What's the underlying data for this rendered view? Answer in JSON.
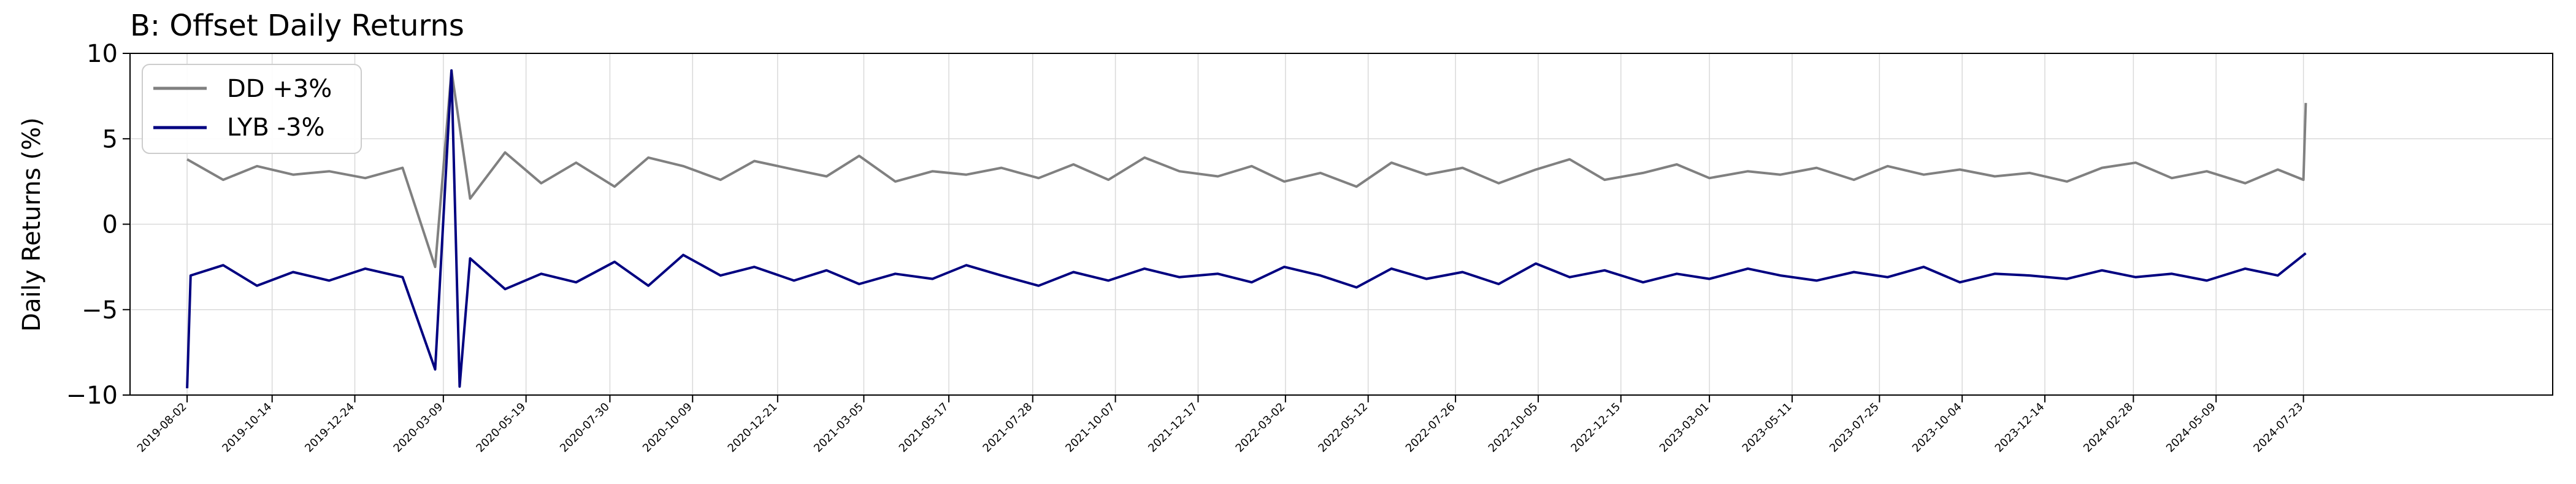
{
  "chart_data": {
    "type": "line",
    "title": "B: Offset Daily Returns",
    "xlabel": "",
    "ylabel": "Daily Returns (%)",
    "ylim": [
      -10,
      10
    ],
    "xlim": [
      "2019-06-14",
      "2025-02-22"
    ],
    "grid": true,
    "legend_position": "top-left",
    "yticks": [
      -10,
      -5,
      0,
      5,
      10
    ],
    "yticklabels": [
      "−10",
      "−5",
      "0",
      "5",
      "10"
    ],
    "xticks": [
      "2019-08-02",
      "2019-10-14",
      "2019-12-24",
      "2020-03-09",
      "2020-05-19",
      "2020-07-30",
      "2020-10-09",
      "2020-12-21",
      "2021-03-05",
      "2021-05-17",
      "2021-07-28",
      "2021-10-07",
      "2021-12-17",
      "2022-03-02",
      "2022-05-12",
      "2022-07-26",
      "2022-10-05",
      "2022-12-15",
      "2023-03-01",
      "2023-05-11",
      "2023-07-25",
      "2023-10-04",
      "2023-12-14",
      "2024-02-28",
      "2024-05-09",
      "2024-07-23"
    ],
    "series": [
      {
        "name": "DD +3%",
        "color": "#808080",
        "x": [
          "2019-08-02",
          "2019-09-02",
          "2019-10-01",
          "2019-11-01",
          "2019-12-02",
          "2020-01-02",
          "2020-02-03",
          "2020-03-02",
          "2020-03-16",
          "2020-04-01",
          "2020-05-01",
          "2020-06-01",
          "2020-07-01",
          "2020-08-03",
          "2020-09-01",
          "2020-10-01",
          "2020-11-02",
          "2020-12-01",
          "2021-01-04",
          "2021-02-01",
          "2021-03-01",
          "2021-04-01",
          "2021-05-03",
          "2021-06-01",
          "2021-07-01",
          "2021-08-02",
          "2021-09-01",
          "2021-10-01",
          "2021-11-01",
          "2021-12-01",
          "2022-01-03",
          "2022-02-01",
          "2022-03-01",
          "2022-04-01",
          "2022-05-02",
          "2022-06-01",
          "2022-07-01",
          "2022-08-01",
          "2022-09-01",
          "2022-10-03",
          "2022-11-01",
          "2022-12-01",
          "2023-01-03",
          "2023-02-01",
          "2023-03-01",
          "2023-04-03",
          "2023-05-01",
          "2023-06-01",
          "2023-07-03",
          "2023-08-01",
          "2023-09-01",
          "2023-10-02",
          "2023-11-01",
          "2023-12-01",
          "2024-01-02",
          "2024-02-01",
          "2024-03-01",
          "2024-04-01",
          "2024-05-01",
          "2024-06-03",
          "2024-07-01",
          "2024-07-23",
          "2024-07-25"
        ],
        "values": [
          3.8,
          2.6,
          3.4,
          2.9,
          3.1,
          2.7,
          3.3,
          -2.5,
          9.0,
          1.5,
          4.2,
          2.4,
          3.6,
          2.2,
          3.9,
          3.4,
          2.6,
          3.7,
          3.2,
          2.8,
          4.0,
          2.5,
          3.1,
          2.9,
          3.3,
          2.7,
          3.5,
          2.6,
          3.9,
          3.1,
          2.8,
          3.4,
          2.5,
          3.0,
          2.2,
          3.6,
          2.9,
          3.3,
          2.4,
          3.2,
          3.8,
          2.6,
          3.0,
          3.5,
          2.7,
          3.1,
          2.9,
          3.3,
          2.6,
          3.4,
          2.9,
          3.2,
          2.8,
          3.0,
          2.5,
          3.3,
          3.6,
          2.7,
          3.1,
          2.4,
          3.2,
          2.6,
          7.1
        ]
      },
      {
        "name": "LYB -3%",
        "color": "#000080",
        "x": [
          "2019-08-02",
          "2019-08-05",
          "2019-09-02",
          "2019-10-01",
          "2019-11-01",
          "2019-12-02",
          "2020-01-02",
          "2020-02-03",
          "2020-03-02",
          "2020-03-16",
          "2020-03-23",
          "2020-04-01",
          "2020-05-01",
          "2020-06-01",
          "2020-07-01",
          "2020-08-03",
          "2020-09-01",
          "2020-10-01",
          "2020-11-02",
          "2020-12-01",
          "2021-01-04",
          "2021-02-01",
          "2021-03-01",
          "2021-04-01",
          "2021-05-03",
          "2021-06-01",
          "2021-07-01",
          "2021-08-02",
          "2021-09-01",
          "2021-10-01",
          "2021-11-01",
          "2021-12-01",
          "2022-01-03",
          "2022-02-01",
          "2022-03-01",
          "2022-04-01",
          "2022-05-02",
          "2022-06-01",
          "2022-07-01",
          "2022-08-01",
          "2022-09-01",
          "2022-10-03",
          "2022-11-01",
          "2022-12-01",
          "2023-01-03",
          "2023-02-01",
          "2023-03-01",
          "2023-04-03",
          "2023-05-01",
          "2023-06-01",
          "2023-07-03",
          "2023-08-01",
          "2023-09-01",
          "2023-10-02",
          "2023-11-01",
          "2023-12-01",
          "2024-01-02",
          "2024-02-01",
          "2024-03-01",
          "2024-04-01",
          "2024-05-01",
          "2024-06-03",
          "2024-07-01",
          "2024-07-25"
        ],
        "values": [
          -9.6,
          -3.0,
          -2.4,
          -3.6,
          -2.8,
          -3.3,
          -2.6,
          -3.1,
          -8.5,
          9.0,
          -9.5,
          -2.0,
          -3.8,
          -2.9,
          -3.4,
          -2.2,
          -3.6,
          -1.8,
          -3.0,
          -2.5,
          -3.3,
          -2.7,
          -3.5,
          -2.9,
          -3.2,
          -2.4,
          -3.0,
          -3.6,
          -2.8,
          -3.3,
          -2.6,
          -3.1,
          -2.9,
          -3.4,
          -2.5,
          -3.0,
          -3.7,
          -2.6,
          -3.2,
          -2.8,
          -3.5,
          -2.3,
          -3.1,
          -2.7,
          -3.4,
          -2.9,
          -3.2,
          -2.6,
          -3.0,
          -3.3,
          -2.8,
          -3.1,
          -2.5,
          -3.4,
          -2.9,
          -3.0,
          -3.2,
          -2.7,
          -3.1,
          -2.9,
          -3.3,
          -2.6,
          -3.0,
          -1.7
        ]
      }
    ]
  }
}
